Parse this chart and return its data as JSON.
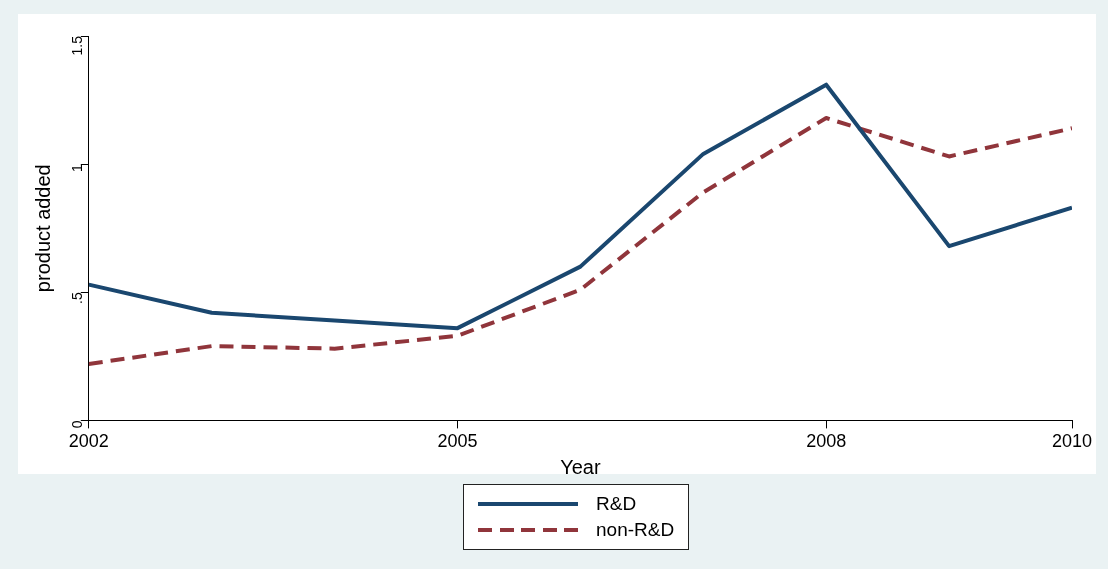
{
  "chart_data": {
    "type": "line",
    "xlabel": "Year",
    "ylabel": "product added",
    "x": [
      2002,
      2003,
      2004,
      2005,
      2006,
      2007,
      2008,
      2009,
      2010
    ],
    "series": [
      {
        "name": "R&D",
        "color": "#1a476f",
        "line_style": "solid",
        "values": [
          0.53,
          0.42,
          0.39,
          0.36,
          0.6,
          1.04,
          1.31,
          0.68,
          0.83
        ]
      },
      {
        "name": "non-R&D",
        "color": "#90353b",
        "line_style": "dashed",
        "values": [
          0.22,
          0.29,
          0.28,
          0.33,
          0.51,
          0.89,
          1.18,
          1.03,
          1.14
        ]
      }
    ],
    "xlim": [
      2002,
      2010
    ],
    "xticks": [
      2002,
      2005,
      2008,
      2010
    ],
    "ylim": [
      0,
      1.5
    ],
    "yticks": [
      0,
      {
        "value": 0.5,
        "label": ".5"
      },
      1,
      1.5
    ],
    "grid": false,
    "legend": "bottom",
    "marker": "none"
  }
}
